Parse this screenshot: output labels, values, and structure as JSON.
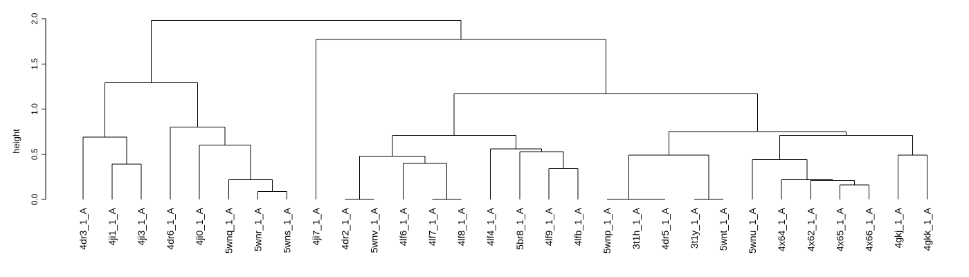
{
  "chart_data": {
    "type": "dendrogram",
    "ylabel": "height",
    "ylim": [
      0,
      2.0
    ],
    "yticks": [
      0.0,
      0.5,
      1.0,
      1.5,
      2.0
    ],
    "ytick_labels": [
      "0.0",
      "0.5",
      "1.0",
      "1.5",
      "2.0"
    ],
    "leaves": [
      "4dr3_1_A",
      "4ji1_1_A",
      "4ji3_1_A",
      "4dr6_1_A",
      "4ji0_1_A",
      "5wnq_1_A",
      "5wnr_1_A",
      "5wns_1_A",
      "4ji7_1_A",
      "4dr2_1_A",
      "5wnv_1_A",
      "4lf6_1_A",
      "4lf7_1_A",
      "4lf8_1_A",
      "4lf4_1_A",
      "5br8_1_A",
      "4lf9_1_A",
      "4lfb_1_A",
      "5wnp_1_A",
      "3t1h_1_A",
      "4dr5_1_A",
      "3t1y_1_A",
      "5wnt_1_A",
      "5wnu_1_A",
      "4x64_1_A",
      "4x62_1_A",
      "4x65_1_A",
      "4x66_1_A",
      "4gkj_1_A",
      "4gkk_1_A"
    ],
    "merges": [
      {
        "a": "L1",
        "b": "L2",
        "height": 0.39
      },
      {
        "a": "L0",
        "b": "M0",
        "height": 0.69
      },
      {
        "a": "L6",
        "b": "L7",
        "height": 0.09
      },
      {
        "a": "L5",
        "b": "M2",
        "height": 0.22
      },
      {
        "a": "L4",
        "b": "M3",
        "height": 0.6
      },
      {
        "a": "L3",
        "b": "M4",
        "height": 0.8
      },
      {
        "a": "M1",
        "b": "M5",
        "height": 1.29
      },
      {
        "a": "L9",
        "b": "L10",
        "height": 0.0
      },
      {
        "a": "L12",
        "b": "L13",
        "height": 0.0
      },
      {
        "a": "L11",
        "b": "M8",
        "height": 0.4
      },
      {
        "a": "M7",
        "b": "M9",
        "height": 0.48
      },
      {
        "a": "L16",
        "b": "L17",
        "height": 0.34
      },
      {
        "a": "L15",
        "b": "M11",
        "height": 0.53
      },
      {
        "a": "L14",
        "b": "M12",
        "height": 0.56
      },
      {
        "a": "M10",
        "b": "M13",
        "height": 0.71
      },
      {
        "a": "L19",
        "b": "L20",
        "height": 0.0
      },
      {
        "a": "L18",
        "b": "M15",
        "height": 0.0
      },
      {
        "a": "L21",
        "b": "L22",
        "height": 0.0
      },
      {
        "a": "M16",
        "b": "M17",
        "height": 0.49
      },
      {
        "a": "L26",
        "b": "L27",
        "height": 0.16
      },
      {
        "a": "L25",
        "b": "M19",
        "height": 0.21
      },
      {
        "a": "L24",
        "b": "M20",
        "height": 0.22
      },
      {
        "a": "L23",
        "b": "M21",
        "height": 0.44
      },
      {
        "a": "L28",
        "b": "L29",
        "height": 0.49
      },
      {
        "a": "M22",
        "b": "M23",
        "height": 0.71
      },
      {
        "a": "M18",
        "b": "M24",
        "height": 0.75
      },
      {
        "a": "M14",
        "b": "M25",
        "height": 1.17
      },
      {
        "a": "L8",
        "b": "M26",
        "height": 1.77
      },
      {
        "a": "M6",
        "b": "M27",
        "height": 1.98
      }
    ]
  }
}
